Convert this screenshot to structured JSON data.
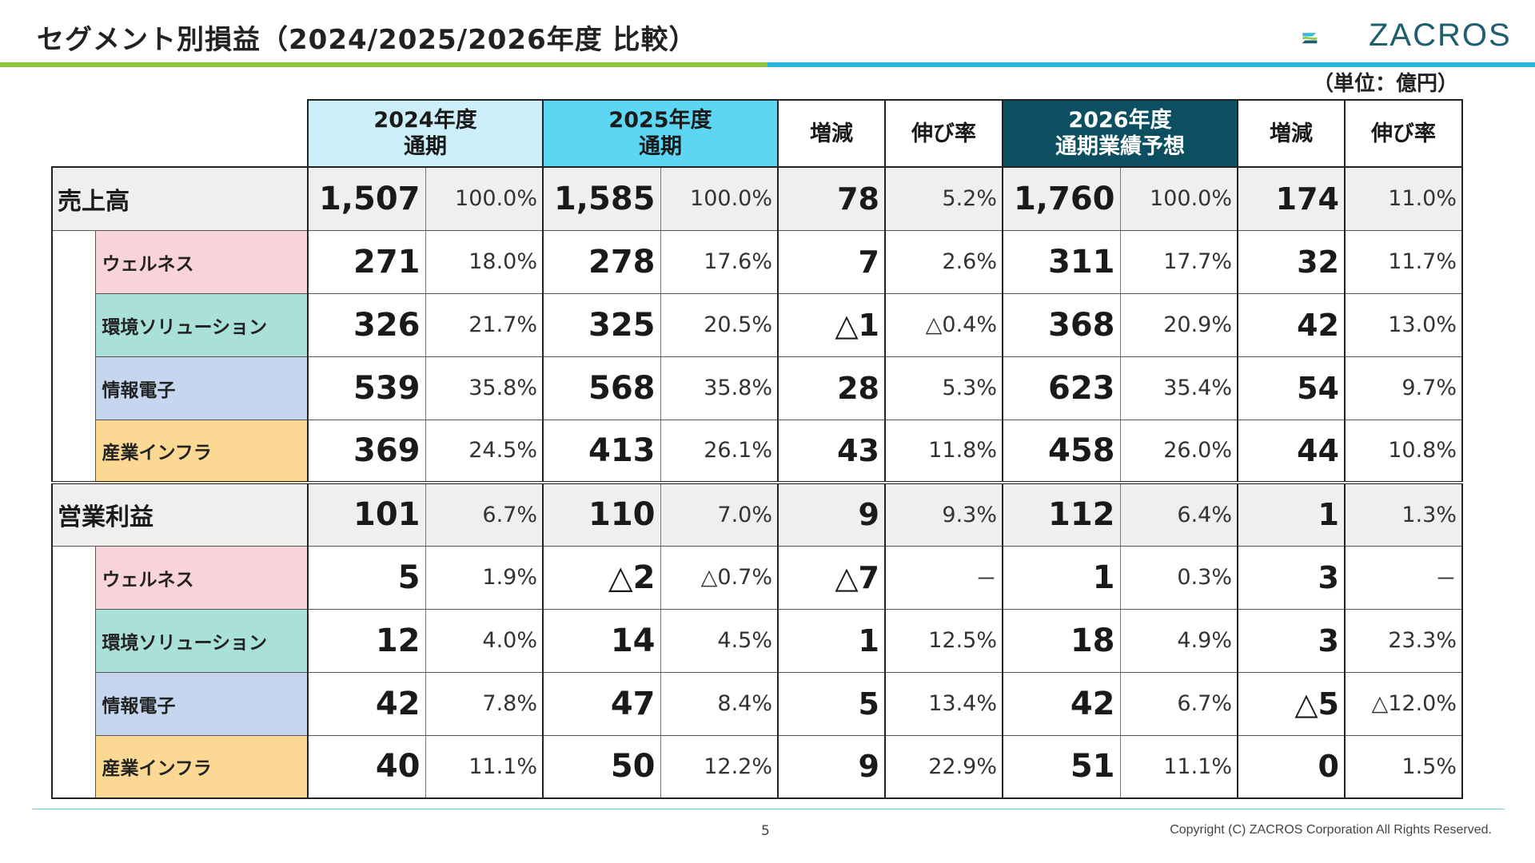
{
  "slide": {
    "title": "セグメント別損益（2024/2025/2026年度 比較）",
    "logo_text": "ZACROS",
    "unit": "（単位：億円）",
    "page_number": "5",
    "copyright": "Copyright (C) ZACROS Corporation  All Rights Reserved."
  },
  "header": {
    "y2024": [
      "2024年度",
      "通期"
    ],
    "y2025": [
      "2025年度",
      "通期"
    ],
    "diff": "増減",
    "rate": "伸び率",
    "y2026": [
      "2026年度",
      "通期業績予想"
    ],
    "diff2": "増減",
    "rate2": "伸び率"
  },
  "sales": {
    "label": "売上高",
    "total": [
      "1,507",
      "100.0%",
      "1,585",
      "100.0%",
      "78",
      "5.2%",
      "1,760",
      "100.0%",
      "174",
      "11.0%"
    ],
    "segments": [
      {
        "label": "ウェルネス",
        "values": [
          "271",
          "18.0%",
          "278",
          "17.6%",
          "7",
          "2.6%",
          "311",
          "17.7%",
          "32",
          "11.7%"
        ]
      },
      {
        "label": "環境ソリューション",
        "values": [
          "326",
          "21.7%",
          "325",
          "20.5%",
          "△1",
          "△0.4%",
          "368",
          "20.9%",
          "42",
          "13.0%"
        ]
      },
      {
        "label": "情報電子",
        "values": [
          "539",
          "35.8%",
          "568",
          "35.8%",
          "28",
          "5.3%",
          "623",
          "35.4%",
          "54",
          "9.7%"
        ]
      },
      {
        "label": "産業インフラ",
        "values": [
          "369",
          "24.5%",
          "413",
          "26.1%",
          "43",
          "11.8%",
          "458",
          "26.0%",
          "44",
          "10.8%"
        ]
      }
    ]
  },
  "profit": {
    "label": "営業利益",
    "total": [
      "101",
      "6.7%",
      "110",
      "7.0%",
      "9",
      "9.3%",
      "112",
      "6.4%",
      "1",
      "1.3%"
    ],
    "segments": [
      {
        "label": "ウェルネス",
        "values": [
          "5",
          "1.9%",
          "△2",
          "△0.7%",
          "△7",
          "－",
          "1",
          "0.3%",
          "3",
          "－"
        ]
      },
      {
        "label": "環境ソリューション",
        "values": [
          "12",
          "4.0%",
          "14",
          "4.5%",
          "1",
          "12.5%",
          "18",
          "4.9%",
          "3",
          "23.3%"
        ]
      },
      {
        "label": "情報電子",
        "values": [
          "42",
          "7.8%",
          "47",
          "8.4%",
          "5",
          "13.4%",
          "42",
          "6.7%",
          "△5",
          "△12.0%"
        ]
      },
      {
        "label": "産業インフラ",
        "values": [
          "40",
          "11.1%",
          "50",
          "12.2%",
          "9",
          "22.9%",
          "51",
          "11.1%",
          "0",
          "1.5%"
        ]
      }
    ]
  }
}
